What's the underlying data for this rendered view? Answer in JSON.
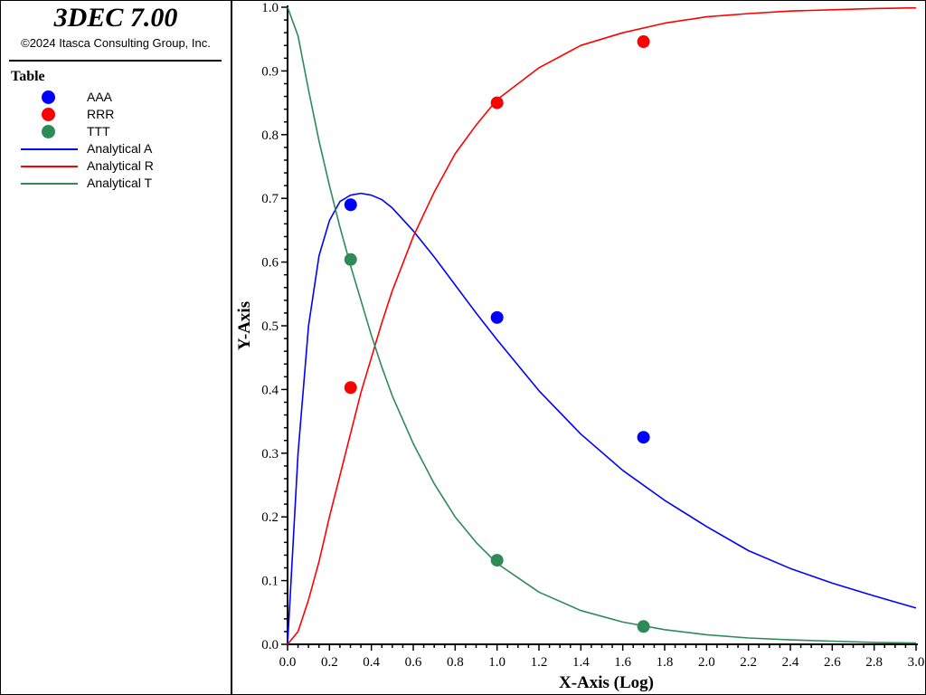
{
  "app": {
    "title": "3DEC 7.00",
    "copyright": "©2024 Itasca Consulting Group, Inc."
  },
  "legend": {
    "title": "Table",
    "items": [
      {
        "label": "AAA",
        "kind": "marker",
        "color": "#0000ff"
      },
      {
        "label": "RRR",
        "kind": "marker",
        "color": "#ff0000"
      },
      {
        "label": "TTT",
        "kind": "marker",
        "color": "#2e8b57"
      },
      {
        "label": "Analytical A",
        "kind": "line",
        "color": "#0000ff"
      },
      {
        "label": "Analytical R",
        "kind": "line",
        "color": "#ff0000"
      },
      {
        "label": "Analytical T",
        "kind": "line",
        "color": "#2e8b57"
      }
    ]
  },
  "chart_data": {
    "type": "scatter",
    "xlabel": "X-Axis (Log)",
    "ylabel": "Y-Axis",
    "xlim": [
      0,
      3.0
    ],
    "ylim": [
      0,
      1.0
    ],
    "grid": false,
    "legend_position": "left panel",
    "xticks": [
      "0.0",
      "0.2",
      "0.4",
      "0.6",
      "0.8",
      "1.0",
      "1.2",
      "1.4",
      "1.6",
      "1.8",
      "2.0",
      "2.2",
      "2.4",
      "2.6",
      "2.8",
      "3.0"
    ],
    "yticks": [
      "0.0",
      "0.1",
      "0.2",
      "0.3",
      "0.4",
      "0.5",
      "0.6",
      "0.7",
      "0.8",
      "0.9",
      "1.0"
    ],
    "series": [
      {
        "name": "AAA",
        "kind": "marker",
        "color": "#0000ff",
        "x": [
          0.301,
          1.0,
          1.699
        ],
        "y": [
          0.69,
          0.513,
          0.325
        ]
      },
      {
        "name": "RRR",
        "kind": "marker",
        "color": "#ff0000",
        "x": [
          0.301,
          1.0,
          1.699
        ],
        "y": [
          0.403,
          0.85,
          0.946
        ]
      },
      {
        "name": "TTT",
        "kind": "marker",
        "color": "#2e8b57",
        "x": [
          0.301,
          1.0,
          1.699
        ],
        "y": [
          0.604,
          0.132,
          0.028
        ]
      },
      {
        "name": "Analytical A",
        "kind": "line",
        "color": "#0000ff",
        "x": [
          0,
          0.05,
          0.1,
          0.15,
          0.2,
          0.25,
          0.3,
          0.35,
          0.4,
          0.45,
          0.5,
          0.6,
          0.7,
          0.8,
          0.9,
          1.0,
          1.2,
          1.4,
          1.6,
          1.8,
          2.0,
          2.2,
          2.4,
          2.6,
          2.8,
          3.0
        ],
        "y": [
          0.0,
          0.3,
          0.5,
          0.61,
          0.665,
          0.695,
          0.705,
          0.708,
          0.705,
          0.698,
          0.685,
          0.649,
          0.608,
          0.564,
          0.52,
          0.478,
          0.398,
          0.33,
          0.273,
          0.226,
          0.185,
          0.147,
          0.119,
          0.096,
          0.076,
          0.057
        ]
      },
      {
        "name": "Analytical R",
        "kind": "line",
        "color": "#ff0000",
        "x": [
          0,
          0.05,
          0.1,
          0.15,
          0.2,
          0.25,
          0.3,
          0.35,
          0.4,
          0.45,
          0.5,
          0.6,
          0.7,
          0.8,
          0.9,
          1.0,
          1.2,
          1.4,
          1.6,
          1.8,
          2.0,
          2.2,
          2.4,
          2.6,
          2.8,
          3.0
        ],
        "y": [
          0.0,
          0.02,
          0.07,
          0.13,
          0.2,
          0.265,
          0.33,
          0.395,
          0.45,
          0.505,
          0.555,
          0.64,
          0.71,
          0.77,
          0.815,
          0.855,
          0.905,
          0.94,
          0.96,
          0.975,
          0.985,
          0.99,
          0.994,
          0.996,
          0.998,
          0.999
        ]
      },
      {
        "name": "Analytical T",
        "kind": "line",
        "color": "#2e8b57",
        "x": [
          0,
          0.05,
          0.1,
          0.15,
          0.2,
          0.25,
          0.3,
          0.35,
          0.4,
          0.45,
          0.5,
          0.6,
          0.7,
          0.8,
          0.9,
          1.0,
          1.2,
          1.4,
          1.6,
          1.8,
          2.0,
          2.2,
          2.4,
          2.6,
          2.8,
          3.0
        ],
        "y": [
          1.0,
          0.955,
          0.87,
          0.79,
          0.72,
          0.655,
          0.595,
          0.54,
          0.485,
          0.435,
          0.39,
          0.315,
          0.252,
          0.2,
          0.16,
          0.127,
          0.082,
          0.053,
          0.035,
          0.023,
          0.015,
          0.01,
          0.007,
          0.005,
          0.003,
          0.002
        ]
      }
    ]
  }
}
